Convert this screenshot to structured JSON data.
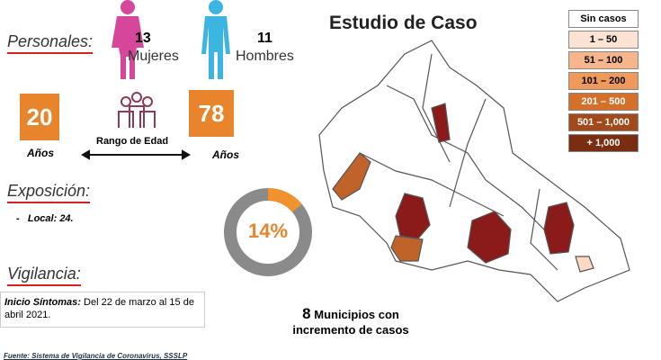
{
  "personales": {
    "title": "Personales:",
    "mujeres": {
      "count": "13",
      "label": "Mujeres"
    },
    "hombres": {
      "count": "11",
      "label": "Hombres"
    }
  },
  "edad": {
    "min": "20",
    "min_unit": "Años",
    "max": "78",
    "max_unit": "Años",
    "label": "Rango de Edad"
  },
  "exposicion": {
    "title": "Exposición:",
    "bullet": "-",
    "key": "Local:",
    "value": "24."
  },
  "donut": {
    "value": 14,
    "label": "14%"
  },
  "vigilancia": {
    "title": "Vigilancia:",
    "key": "Inicio Síntomas:",
    "text": "Del 22 de marzo al 15 de abril 2021."
  },
  "map": {
    "title": "Estudio de Caso",
    "legend": [
      "Sin casos",
      "1 – 50",
      "51 – 100",
      "101 – 200",
      "201 – 500",
      "501 – 1,000",
      "+ 1,000"
    ]
  },
  "municipios": {
    "count": "8",
    "text": "Municipios con incremento de casos"
  },
  "fuente": "Fuente: Sistema de Vigilancia de Coronavirus, SSSLP"
}
